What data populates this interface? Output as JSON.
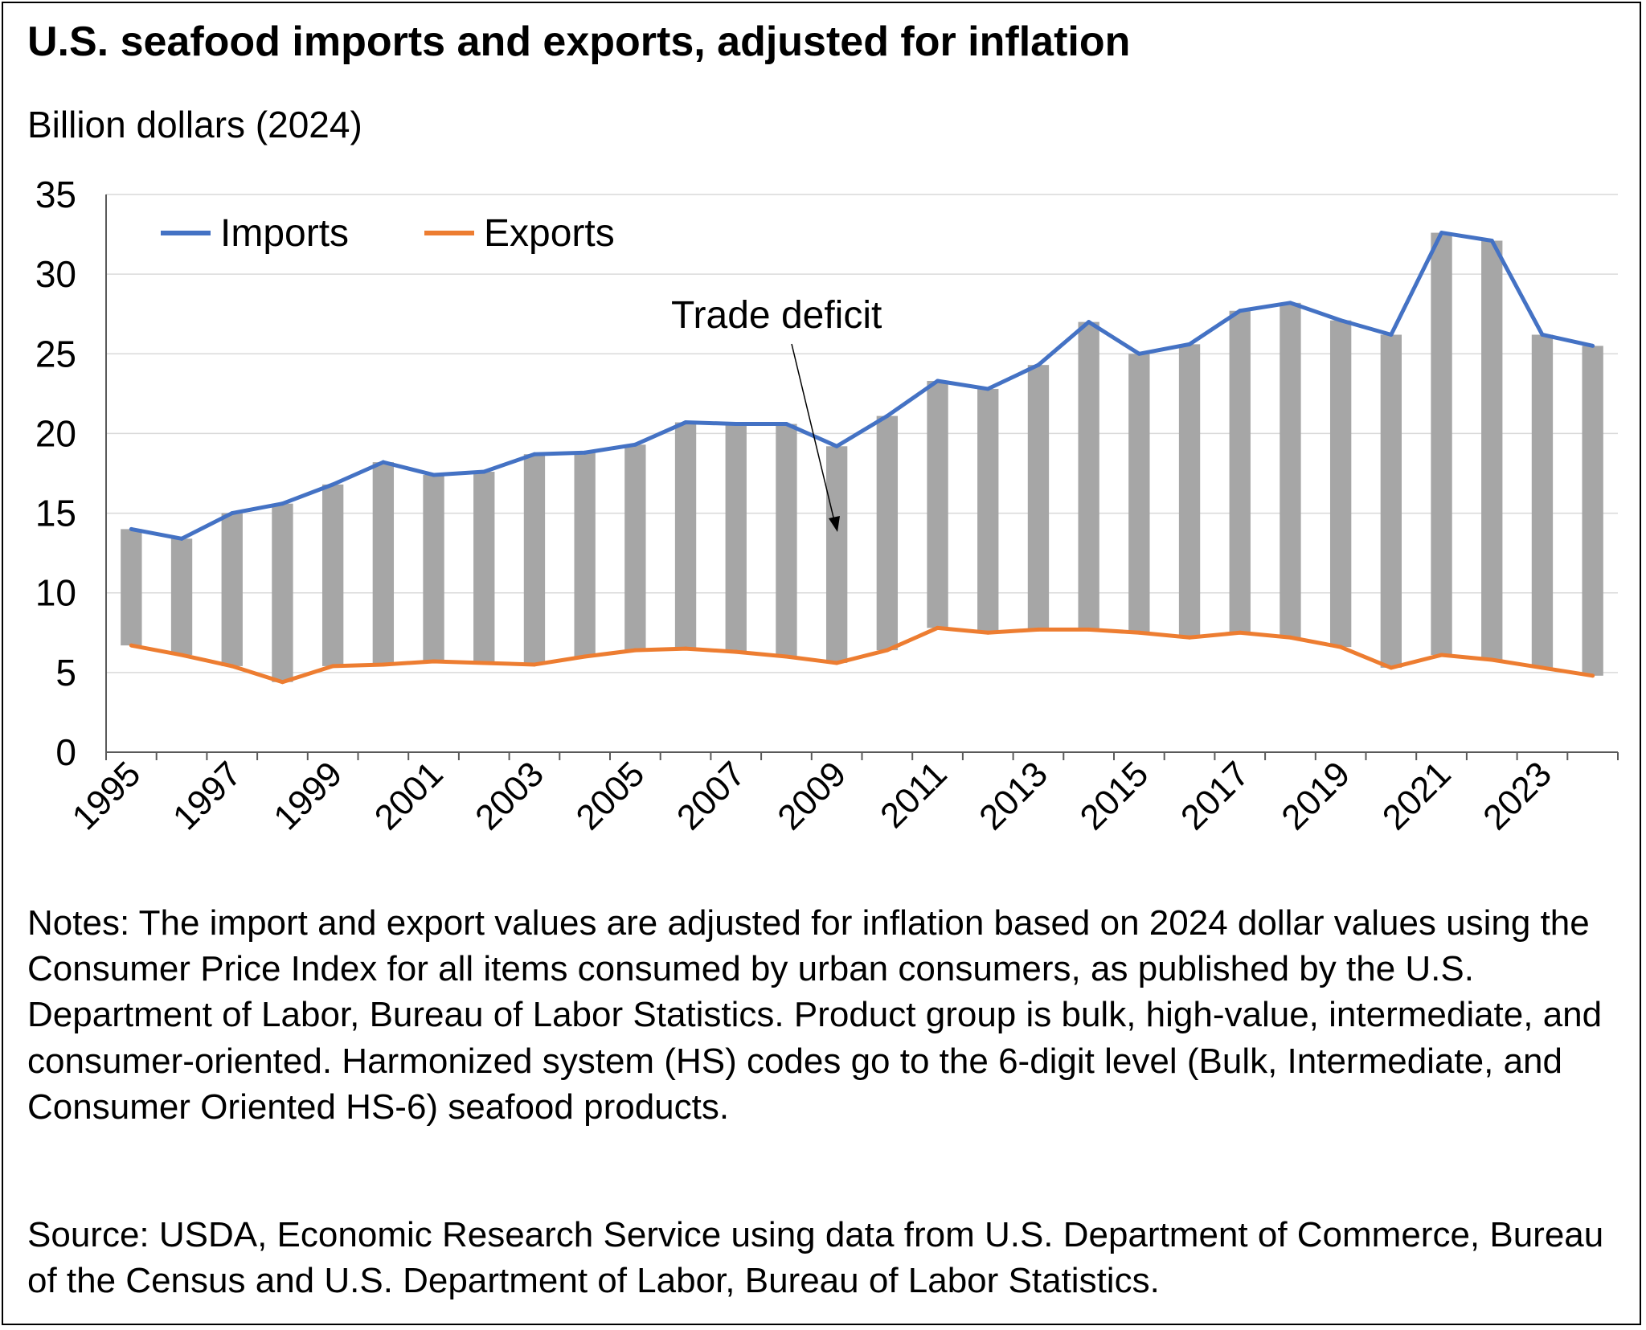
{
  "chart_data": {
    "type": "line",
    "title": "U.S. seafood imports and exports, adjusted for inflation",
    "ylabel": "Billion dollars (2024)",
    "xlabel": "",
    "ylim": [
      0,
      35
    ],
    "yticks": [
      0,
      5,
      10,
      15,
      20,
      25,
      30,
      35
    ],
    "x": [
      1995,
      1996,
      1997,
      1998,
      1999,
      2000,
      2001,
      2002,
      2003,
      2004,
      2005,
      2006,
      2007,
      2008,
      2009,
      2010,
      2011,
      2012,
      2013,
      2014,
      2015,
      2016,
      2017,
      2018,
      2019,
      2020,
      2021,
      2022,
      2023,
      2024
    ],
    "xtick_labels": [
      "1995",
      "1997",
      "1999",
      "2001",
      "2003",
      "2005",
      "2007",
      "2009",
      "2011",
      "2013",
      "2015",
      "2017",
      "2019",
      "2021",
      "2023"
    ],
    "series": [
      {
        "name": "Imports",
        "color": "#4472C4",
        "values": [
          14.0,
          13.4,
          15.0,
          15.6,
          16.8,
          18.2,
          17.4,
          17.6,
          18.7,
          18.8,
          19.3,
          20.7,
          20.6,
          20.6,
          19.2,
          21.1,
          23.3,
          22.8,
          24.3,
          27.0,
          25.0,
          25.6,
          27.7,
          28.2,
          27.1,
          26.2,
          32.6,
          32.1,
          26.2,
          25.5
        ]
      },
      {
        "name": "Exports",
        "color": "#ED7D31",
        "values": [
          6.7,
          6.1,
          5.4,
          4.4,
          5.4,
          5.5,
          5.7,
          5.6,
          5.5,
          6.0,
          6.4,
          6.5,
          6.3,
          6.0,
          5.6,
          6.4,
          7.8,
          7.5,
          7.7,
          7.7,
          7.5,
          7.2,
          7.5,
          7.2,
          6.6,
          5.3,
          6.1,
          5.8,
          5.3,
          4.8
        ]
      }
    ],
    "deficit_bar_color": "#A6A6A6",
    "legend": {
      "placement": "top-left",
      "entries": [
        "Imports",
        "Exports"
      ]
    },
    "annotation": "Trade deficit",
    "grid": true
  },
  "notes": "Notes: The import and export values are adjusted for inflation based on 2024 dollar values using the Consumer Price Index for all items consumed by urban consumers, as published by the U.S. Department of Labor, Bureau of Labor Statistics. Product group is bulk, high-value, intermediate, and consumer-oriented. Harmonized system (HS) codes go to the 6-digit level (Bulk, Intermediate, and Consumer Oriented HS-6) seafood products.",
  "source": "Source: USDA, Economic Research Service using data from U.S. Department of Commerce, Bureau of the Census and U.S. Department of Labor, Bureau of Labor Statistics."
}
